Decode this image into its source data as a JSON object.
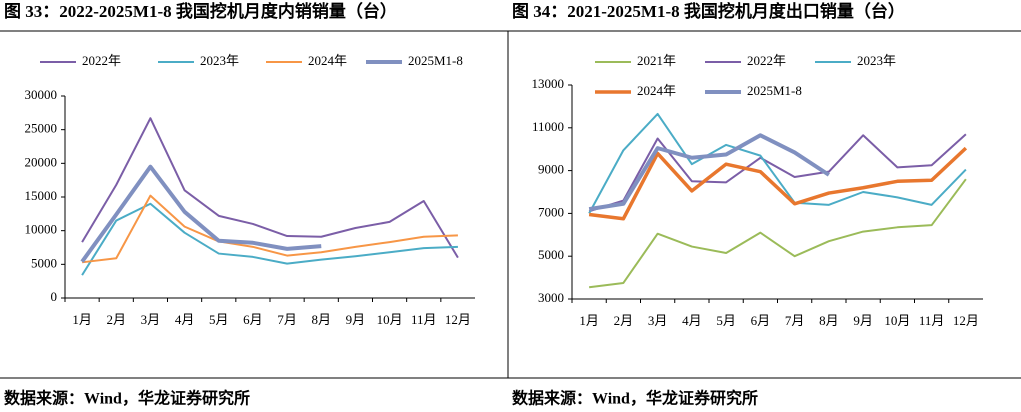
{
  "chart_data": [
    {
      "type": "line",
      "title": "图 33：2022-2025M1-8 我国挖机月度内销销量（台）",
      "source": "数据来源：Wind，华龙证券研究所",
      "categories": [
        "1月",
        "2月",
        "3月",
        "4月",
        "5月",
        "6月",
        "7月",
        "8月",
        "9月",
        "10月",
        "11月",
        "12月"
      ],
      "ylim": [
        0,
        30000
      ],
      "yticks": [
        0,
        5000,
        10000,
        15000,
        20000,
        25000,
        30000
      ],
      "series": [
        {
          "name": "2022年",
          "color": "#7b5ea7",
          "values": [
            8300,
            16800,
            26700,
            16000,
            12200,
            11000,
            9200,
            9100,
            10400,
            11300,
            14400,
            6000
          ]
        },
        {
          "name": "2023年",
          "color": "#4bacc6",
          "values": [
            3400,
            11500,
            14000,
            9700,
            6600,
            6100,
            5100,
            5700,
            6200,
            6800,
            7400,
            7600
          ]
        },
        {
          "name": "2024年",
          "color": "#f79646",
          "values": [
            5300,
            5900,
            15200,
            10600,
            8400,
            7600,
            6300,
            6800,
            7600,
            8300,
            9100,
            9300
          ]
        },
        {
          "name": "2025M1-8",
          "color": "#8090c0",
          "values": [
            5400,
            12400,
            19500,
            12800,
            8500,
            8200,
            7300,
            7700,
            null,
            null,
            null,
            null
          ]
        }
      ]
    },
    {
      "type": "line",
      "title": "图 34：2021-2025M1-8 我国挖机月度出口销量（台）",
      "source": "数据来源：Wind，华龙证券研究所",
      "categories": [
        "1月",
        "2月",
        "3月",
        "4月",
        "5月",
        "6月",
        "7月",
        "8月",
        "9月",
        "10月",
        "11月",
        "12月"
      ],
      "ylim": [
        3000,
        13000
      ],
      "yticks": [
        3000,
        5000,
        7000,
        9000,
        11000,
        13000
      ],
      "series": [
        {
          "name": "2021年",
          "color": "#9bbb59",
          "values": [
            3550,
            3750,
            6050,
            5450,
            5150,
            6100,
            5000,
            5700,
            6150,
            6350,
            6450,
            8600
          ]
        },
        {
          "name": "2022年",
          "color": "#7b5ea7",
          "values": [
            7100,
            7600,
            10500,
            8500,
            8450,
            9600,
            8700,
            8950,
            10650,
            9150,
            9250,
            10700
          ]
        },
        {
          "name": "2023年",
          "color": "#4bacc6",
          "values": [
            7000,
            9950,
            11650,
            9300,
            10200,
            9700,
            7500,
            7400,
            8000,
            7750,
            7400,
            9050
          ]
        },
        {
          "name": "2024年",
          "color": "#e8772e",
          "values": [
            6950,
            6750,
            9800,
            8050,
            9300,
            8950,
            7450,
            7950,
            8200,
            8500,
            8550,
            10050
          ]
        },
        {
          "name": "2025M1-8",
          "color": "#8090c0",
          "values": [
            7200,
            7450,
            10050,
            9600,
            9750,
            10650,
            9850,
            8800,
            null,
            null,
            null,
            null
          ]
        }
      ]
    }
  ]
}
